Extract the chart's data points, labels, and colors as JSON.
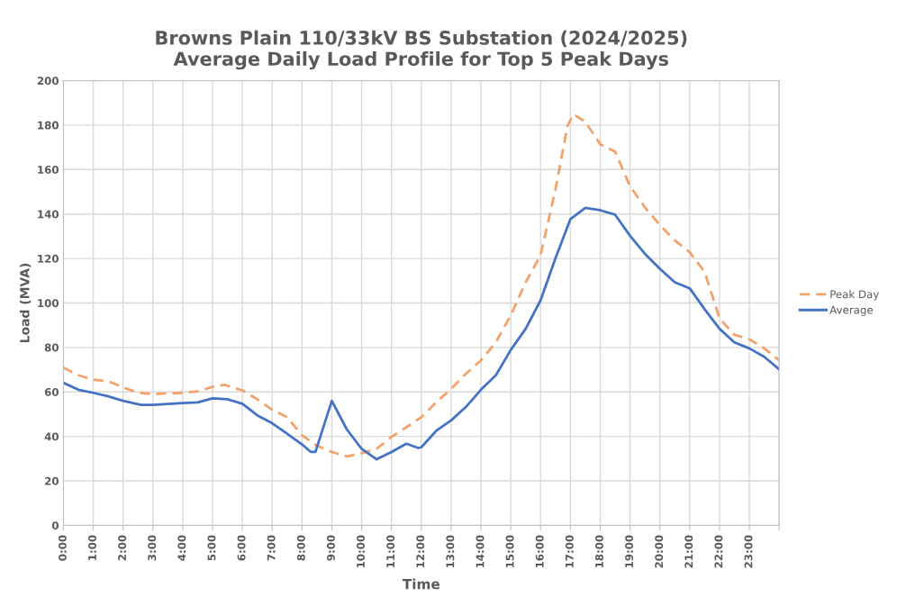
{
  "chart_data": {
    "type": "line",
    "title": "Browns Plain 110/33kV BS Substation (2024/2025)\nAverage Daily Load Profile for Top 5 Peak Days",
    "xlabel": "Time",
    "ylabel": "Load (MVA)",
    "xlim": [
      0,
      24
    ],
    "xticks": [
      {
        "value": 0,
        "label": "0:00"
      },
      {
        "value": 1,
        "label": "1:00"
      },
      {
        "value": 2,
        "label": "2:00"
      },
      {
        "value": 3,
        "label": "3:00"
      },
      {
        "value": 4,
        "label": "4:00"
      },
      {
        "value": 5,
        "label": "5:00"
      },
      {
        "value": 6,
        "label": "6:00"
      },
      {
        "value": 7,
        "label": "7:00"
      },
      {
        "value": 8,
        "label": "8:00"
      },
      {
        "value": 9,
        "label": "9:00"
      },
      {
        "value": 10,
        "label": "10:00"
      },
      {
        "value": 11,
        "label": "11:00"
      },
      {
        "value": 12,
        "label": "12:00"
      },
      {
        "value": 13,
        "label": "13:00"
      },
      {
        "value": 14,
        "label": "14:00"
      },
      {
        "value": 15,
        "label": "15:00"
      },
      {
        "value": 16,
        "label": "16:00"
      },
      {
        "value": 17,
        "label": "17:00"
      },
      {
        "value": 18,
        "label": "18:00"
      },
      {
        "value": 19,
        "label": "19:00"
      },
      {
        "value": 20,
        "label": "20:00"
      },
      {
        "value": 21,
        "label": "21:00"
      },
      {
        "value": 22,
        "label": "22:00"
      },
      {
        "value": 23,
        "label": "23:00"
      },
      {
        "value": 24,
        "label": null
      }
    ],
    "ylim": [
      0,
      200
    ],
    "yticks": [
      0,
      20,
      40,
      60,
      80,
      100,
      120,
      140,
      160,
      180,
      200
    ],
    "grid": true,
    "legend": "right",
    "marker": "none",
    "series": [
      {
        "name": "Peak Day",
        "color": "#f4a26a",
        "line_style": "dashed",
        "x": [
          0,
          0.5,
          1,
          1.5,
          2,
          2.5,
          3,
          3.5,
          4,
          4.5,
          5,
          5.4,
          6,
          6.5,
          7,
          7.5,
          8,
          8.5,
          9,
          9.5,
          10,
          10.5,
          11,
          11.5,
          12,
          12.5,
          13,
          13.5,
          14,
          14.5,
          15,
          15.5,
          16,
          16.5,
          16.9,
          17.1,
          17.5,
          18,
          18.5,
          19,
          19.5,
          20,
          20.5,
          21,
          21.5,
          22,
          22.5,
          23,
          23.5,
          24
        ],
        "values": [
          70.9,
          67.5,
          65.5,
          64.8,
          62.1,
          59.6,
          59,
          59.4,
          59.6,
          60.3,
          62.3,
          63.2,
          60.7,
          56.7,
          52,
          48.6,
          40.5,
          35.8,
          33,
          31,
          32.4,
          34.4,
          39.8,
          44.1,
          48.6,
          55.3,
          61.4,
          68.2,
          74.2,
          82.3,
          94.5,
          109.3,
          121.5,
          151.1,
          179.5,
          184.9,
          181.5,
          171.4,
          168,
          152.5,
          143,
          135,
          128.2,
          122.8,
          114,
          93.1,
          85.7,
          83.7,
          79.6,
          74.2
        ]
      },
      {
        "name": "Average",
        "color": "#4472c4",
        "line_style": "solid",
        "x": [
          0,
          0.5,
          1,
          1.5,
          2,
          2.6,
          3,
          4,
          4.5,
          5,
          5.5,
          6,
          6.5,
          7,
          7.5,
          8,
          8.3,
          8.45,
          9,
          9.5,
          10,
          10.5,
          11,
          11.5,
          11.9,
          12,
          12.5,
          13,
          13.5,
          14,
          14.5,
          15,
          15.5,
          16,
          16.5,
          17,
          17.5,
          18,
          18.5,
          19,
          19.5,
          20,
          20.5,
          21,
          21.5,
          22,
          22.5,
          23,
          23.5,
          24
        ],
        "values": [
          64.1,
          61,
          59.6,
          58,
          56,
          54.2,
          54.2,
          55,
          55.3,
          57.1,
          56.7,
          54.7,
          49.5,
          45.9,
          41.2,
          36.4,
          33,
          33,
          56,
          43.2,
          34.4,
          29.7,
          33,
          36.7,
          34.8,
          35.1,
          42.5,
          47.2,
          53.3,
          61,
          67.5,
          78.9,
          88.4,
          101.2,
          120.1,
          137.7,
          142.8,
          141.7,
          139.7,
          130.2,
          122.1,
          115.4,
          109.3,
          106.6,
          97.2,
          88.4,
          82.3,
          79.6,
          75.8,
          70.2
        ]
      }
    ]
  }
}
